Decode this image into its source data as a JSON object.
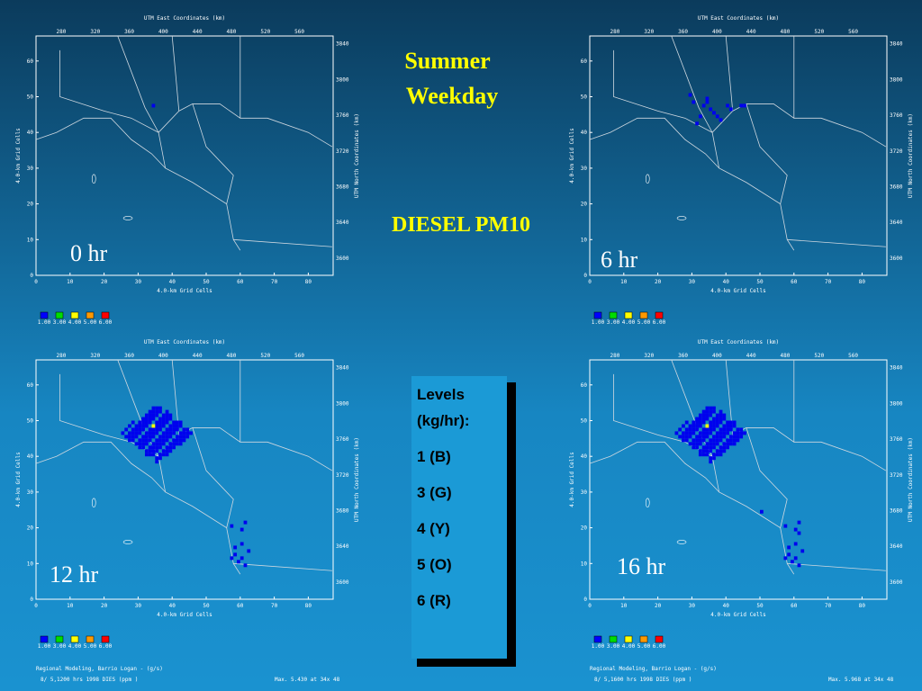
{
  "title": [
    "Summer",
    "Weekday"
  ],
  "subtitle": "DIESEL PM10",
  "axes": {
    "x_ticks": [
      0,
      10,
      20,
      30,
      40,
      50,
      60,
      70,
      80
    ],
    "y_ticks": [
      0,
      10,
      20,
      30,
      40,
      50,
      60
    ],
    "top_ticks": [
      280,
      320,
      360,
      400,
      440,
      480,
      520,
      560
    ],
    "right_ticks": [
      3600,
      3640,
      3680,
      3720,
      3760,
      3800,
      3840
    ],
    "x_title": "4.0-km Grid Cells",
    "y_title": "4.0-km Grid Cells",
    "top_title": "UTM East Coordinates (km)",
    "right_title": "UTM North Coordinates (km)"
  },
  "legend": [
    "1.00",
    "3.00",
    "4.00",
    "5.00",
    "6.00"
  ],
  "panels": [
    {
      "label": "0 hr"
    },
    {
      "label": "6 hr"
    },
    {
      "label": "12 hr",
      "footer": [
        "Regional Modeling, Barrio Logan - (g/s)",
        "8/ 5,1200 hrs  1998  DIES   (ppm )",
        "Max.   5.430 at  34x 48"
      ]
    },
    {
      "label": "16 hr",
      "footer": [
        "Regional Modeling, Barrio Logan - (g/s)",
        "8/ 5,1600 hrs  1998  DIES   (ppm )",
        "Max.   5.968 at  34x 48"
      ]
    }
  ],
  "levels": {
    "title": [
      "Levels",
      "(kg/hr):"
    ],
    "items": [
      "1 (B)",
      "3 (G)",
      "4 (Y)",
      "5 (O)",
      "6 (R)"
    ]
  }
}
